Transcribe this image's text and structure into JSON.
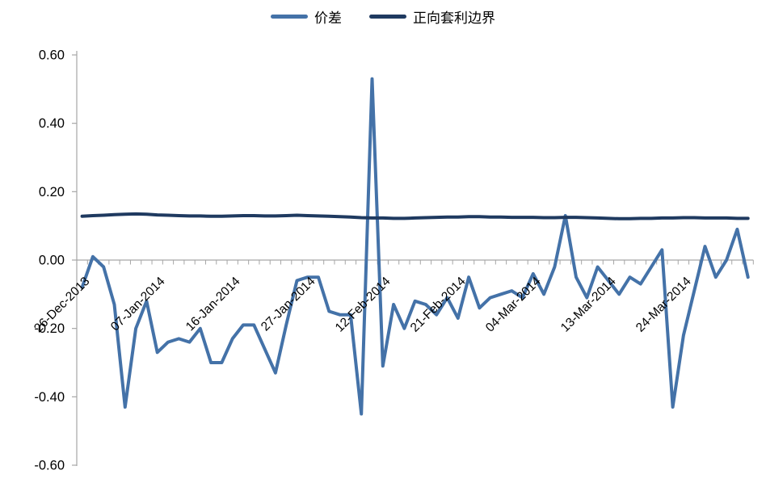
{
  "chart_data": {
    "type": "line",
    "title": "",
    "legend": {
      "position": "top",
      "entries": [
        "价差",
        "正向套利边界"
      ]
    },
    "x_axis": {
      "labels": [
        "26-Dec-2013",
        "07-Jan-2014",
        "16-Jan-2014",
        "27-Jan-2014",
        "12-Feb-2014",
        "21-Feb-2014",
        "04-Mar-2014",
        "13-Mar-2014",
        "24-Mar-2014"
      ],
      "label_every_n_points": 7,
      "label_rotation_deg": -45,
      "tick_count": 64
    },
    "y_axis": {
      "min": -0.6,
      "max": 0.6,
      "tick_step": 0.2,
      "tick_labels": [
        "0.60",
        "0.40",
        "0.20",
        "0.00",
        "-0.20",
        "-0.40",
        "-0.60"
      ]
    },
    "grid": {
      "horizontal_gridlines": false,
      "zero_axis_line": true
    },
    "colors": {
      "axis": "#A6A6A6",
      "text": "#000000",
      "spread": "#4472A8",
      "boundary": "#1F3A60"
    },
    "series": [
      {
        "name": "价差",
        "color": "#4472A8",
        "values": [
          -0.08,
          0.01,
          -0.02,
          -0.13,
          -0.43,
          -0.2,
          -0.12,
          -0.27,
          -0.24,
          -0.23,
          -0.24,
          -0.2,
          -0.3,
          -0.3,
          -0.23,
          -0.19,
          -0.19,
          -0.26,
          -0.33,
          -0.19,
          -0.06,
          -0.05,
          -0.05,
          -0.15,
          -0.16,
          -0.16,
          -0.45,
          0.53,
          -0.31,
          -0.13,
          -0.2,
          -0.12,
          -0.13,
          -0.16,
          -0.11,
          -0.17,
          -0.05,
          -0.14,
          -0.11,
          -0.1,
          -0.09,
          -0.11,
          -0.04,
          -0.1,
          -0.02,
          0.13,
          -0.05,
          -0.11,
          -0.02,
          -0.06,
          -0.1,
          -0.05,
          -0.07,
          -0.02,
          0.03,
          -0.43,
          -0.22,
          -0.09,
          0.04,
          -0.05,
          0.0,
          0.09,
          -0.05
        ]
      },
      {
        "name": "正向套利边界",
        "color": "#1F3A60",
        "values": [
          0.128,
          0.13,
          0.131,
          0.133,
          0.134,
          0.135,
          0.134,
          0.132,
          0.131,
          0.13,
          0.129,
          0.129,
          0.128,
          0.128,
          0.129,
          0.13,
          0.13,
          0.129,
          0.129,
          0.13,
          0.131,
          0.13,
          0.129,
          0.128,
          0.127,
          0.126,
          0.124,
          0.123,
          0.123,
          0.122,
          0.122,
          0.123,
          0.124,
          0.125,
          0.126,
          0.126,
          0.127,
          0.127,
          0.126,
          0.126,
          0.125,
          0.125,
          0.125,
          0.124,
          0.124,
          0.125,
          0.125,
          0.124,
          0.123,
          0.122,
          0.121,
          0.121,
          0.122,
          0.122,
          0.123,
          0.123,
          0.124,
          0.124,
          0.123,
          0.123,
          0.123,
          0.122,
          0.122
        ]
      }
    ]
  }
}
